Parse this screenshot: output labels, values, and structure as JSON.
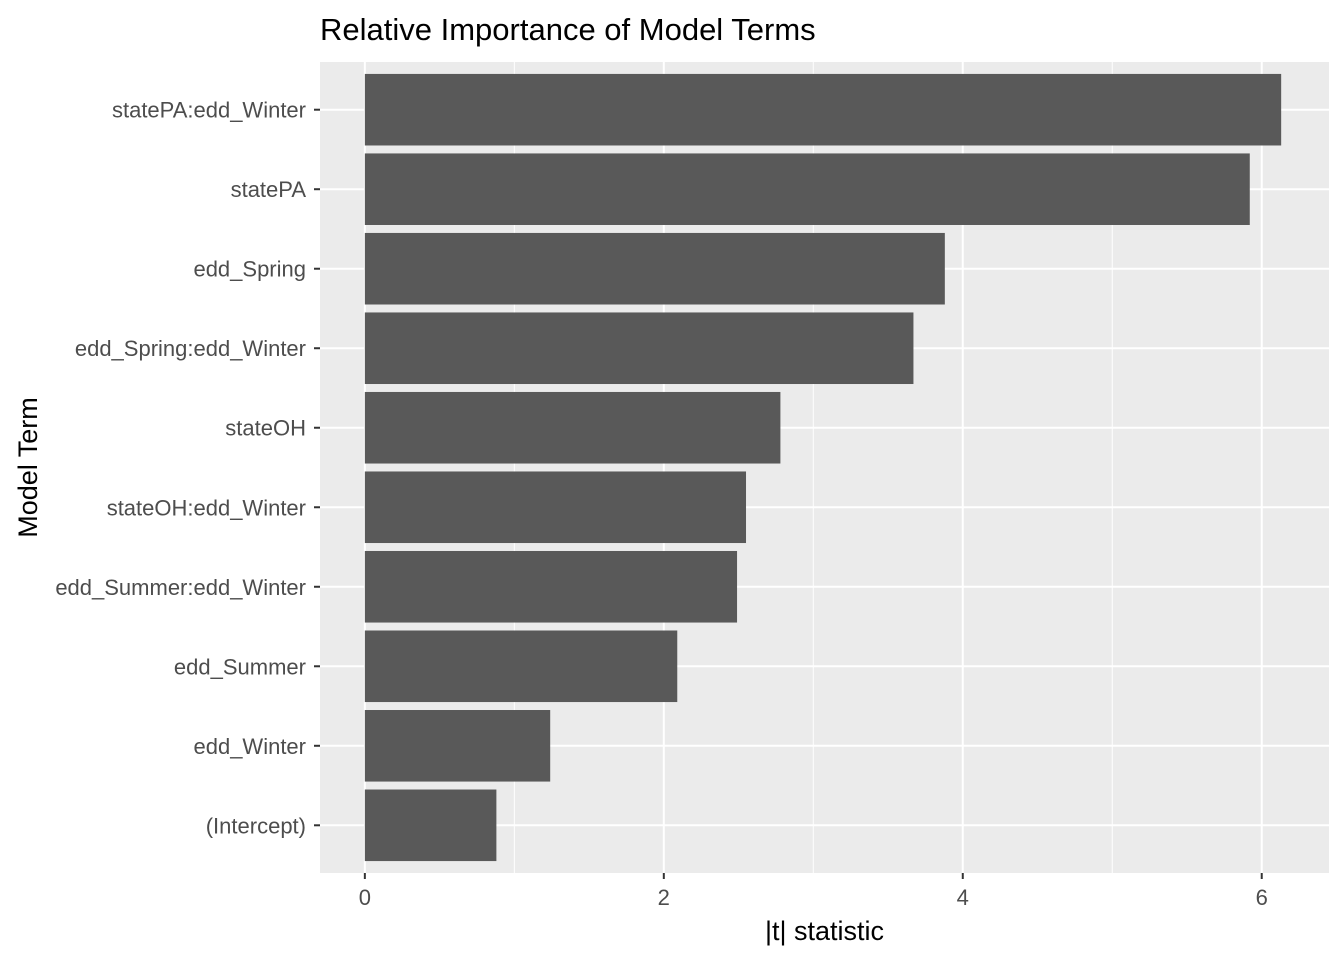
{
  "chart_data": {
    "type": "bar",
    "orientation": "horizontal",
    "title": "Relative Importance of Model Terms",
    "xlabel": "|t| statistic",
    "ylabel": "Model Term",
    "categories": [
      "statePA:edd_Winter",
      "statePA",
      "edd_Spring",
      "edd_Spring:edd_Winter",
      "stateOH",
      "stateOH:edd_Winter",
      "edd_Summer:edd_Winter",
      "edd_Summer",
      "edd_Winter",
      "(Intercept)"
    ],
    "values": [
      6.13,
      5.92,
      3.88,
      3.67,
      2.78,
      2.55,
      2.49,
      2.09,
      1.24,
      0.88
    ],
    "xlim": [
      -0.3,
      6.45
    ],
    "xticks": [
      0,
      2,
      4,
      6
    ],
    "xtick_labels": [
      "0",
      "2",
      "4",
      "6"
    ],
    "grid": true,
    "legend": "none",
    "colors": {
      "bar": "#595959",
      "panel_background": "#ebebeb",
      "grid": "#ffffff",
      "tick_label": "#4d4d4d",
      "tick": "#333333"
    }
  }
}
